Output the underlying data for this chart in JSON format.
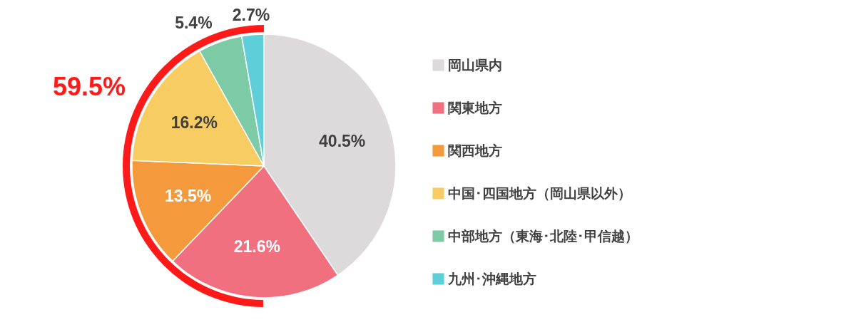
{
  "chart_data": {
    "type": "pie",
    "categories": [
      "岡山県内",
      "関東地方",
      "関西地方",
      "中国･四国地方（岡山県以外）",
      "中部地方（東海･北陸･甲信越）",
      "九州･沖縄地方"
    ],
    "values": [
      40.5,
      21.6,
      13.5,
      16.2,
      5.4,
      2.7
    ],
    "colors": [
      "#dcdadb",
      "#f07080",
      "#f59a3c",
      "#f7cd63",
      "#7ccaa6",
      "#5ecfd9"
    ],
    "value_labels": [
      "40.5%",
      "21.6%",
      "13.5%",
      "16.2%",
      "5.4%",
      "2.7%"
    ],
    "legend": "right",
    "annotations": [
      "59.5%"
    ]
  }
}
